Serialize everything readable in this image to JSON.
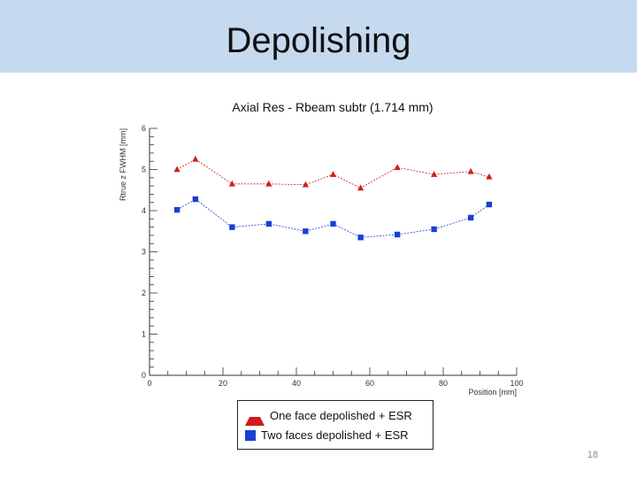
{
  "slide": {
    "title": "Depolishing",
    "page_number": "18"
  },
  "chart_data": {
    "type": "line",
    "title": "Axial Res - Rbeam subtr (1.714 mm)",
    "xlabel": "Position [mm]",
    "ylabel": "Rtrue  z FWHM [mm]",
    "xlim": [
      0,
      100
    ],
    "ylim": [
      0,
      6
    ],
    "xticks": [
      "0",
      "20",
      "40",
      "60",
      "80",
      "100"
    ],
    "yticks": [
      "0",
      "1",
      "2",
      "3",
      "4",
      "5",
      "6"
    ],
    "grid": false,
    "legend_position": "bottom-center",
    "series": [
      {
        "name": "One face depolished + ESR",
        "marker": "triangle",
        "color": "#d01c1c",
        "x": [
          7.5,
          12.5,
          22.5,
          32.5,
          42.5,
          50,
          57.5,
          67.5,
          77.5,
          87.5,
          92.5
        ],
        "y": [
          5.0,
          5.25,
          4.65,
          4.65,
          4.63,
          4.88,
          4.55,
          5.05,
          4.88,
          4.95,
          4.82
        ]
      },
      {
        "name": "Two faces depolished + ESR",
        "marker": "square",
        "color": "#1a3fd6",
        "x": [
          7.5,
          12.5,
          22.5,
          32.5,
          42.5,
          50,
          57.5,
          67.5,
          77.5,
          87.5,
          92.5
        ],
        "y": [
          4.02,
          4.28,
          3.6,
          3.68,
          3.5,
          3.68,
          3.35,
          3.42,
          3.55,
          3.83,
          4.15
        ]
      }
    ]
  }
}
